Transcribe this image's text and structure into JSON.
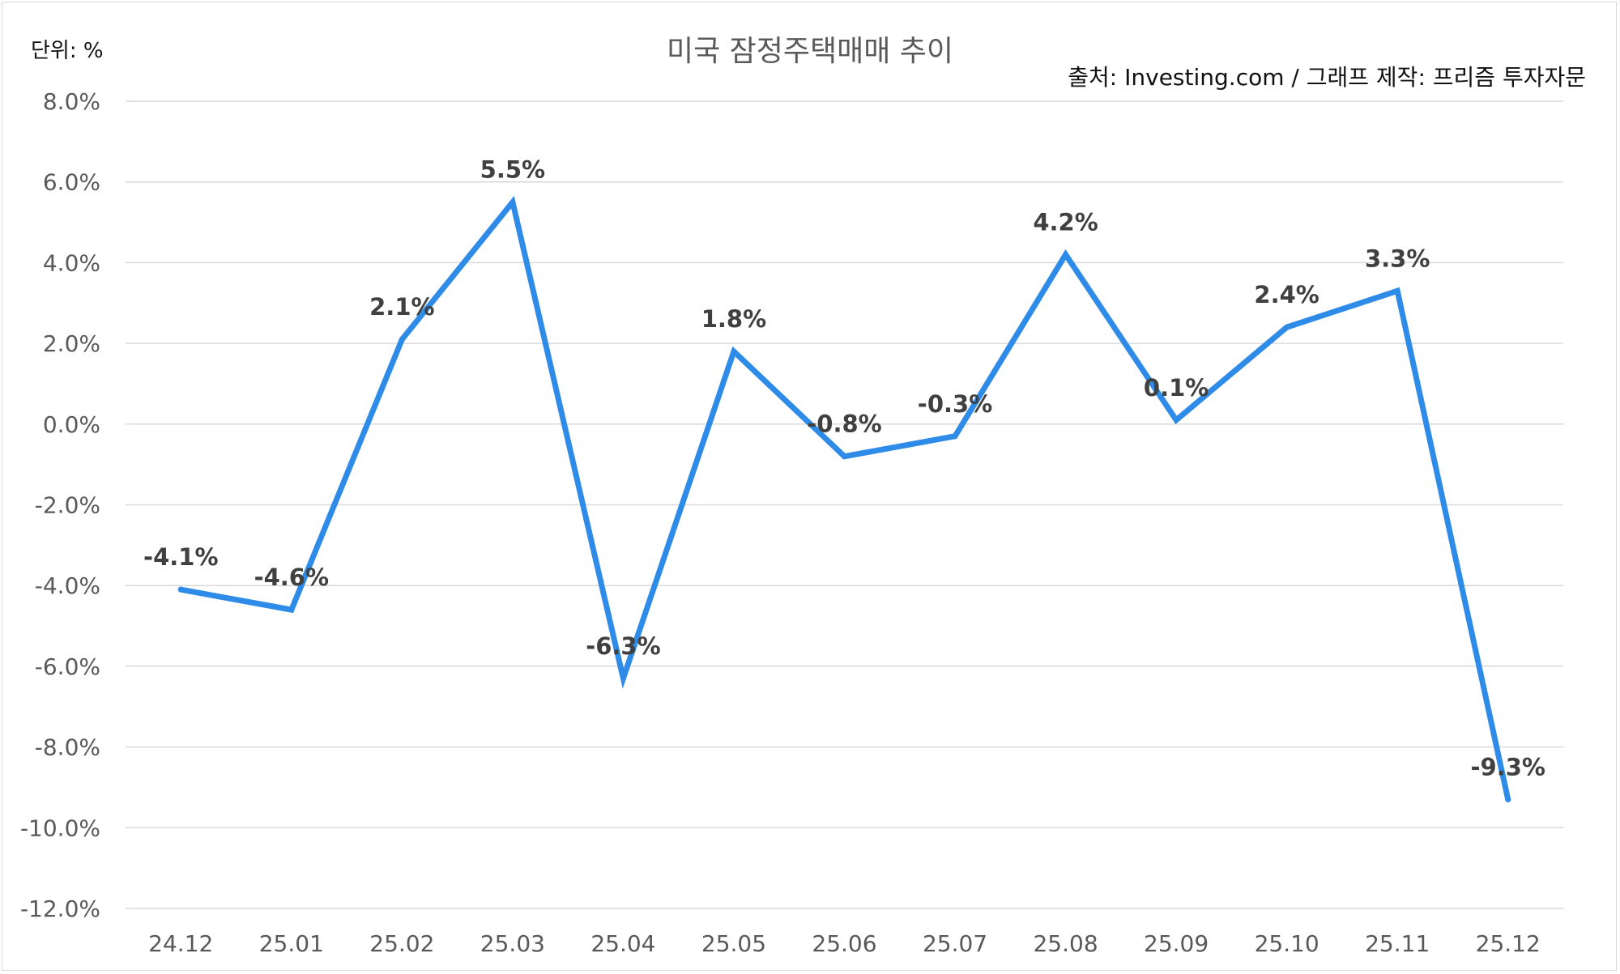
{
  "unit_label": "단위: %",
  "source_label": "출처: Investing.com / 그래프 제작: 프리즘 투자자문",
  "colors": {
    "line": "#2E8BE8",
    "grid": "#d9d9d9",
    "tick_text": "#595959",
    "data_label": "#404040"
  },
  "chart_data": {
    "type": "line",
    "title": "미국 잠정주택매매 추이",
    "xlabel": "",
    "ylabel": "",
    "categories": [
      "24.12",
      "25.01",
      "25.02",
      "25.03",
      "25.04",
      "25.05",
      "25.06",
      "25.07",
      "25.08",
      "25.09",
      "25.10",
      "25.11",
      "25.12"
    ],
    "series": [
      {
        "values": [
          -4.1,
          -4.6,
          2.1,
          5.5,
          -6.3,
          1.8,
          -0.8,
          -0.3,
          4.2,
          0.1,
          2.4,
          3.3,
          -9.3
        ],
        "labels": [
          "-4.1%",
          "-4.6%",
          "2.1%",
          "5.5%",
          "-6.3%",
          "1.8%",
          "-0.8%",
          "-0.3%",
          "4.2%",
          "0.1%",
          "2.4%",
          "3.3%",
          "-9.3%"
        ]
      }
    ],
    "ylim": [
      -12,
      8
    ],
    "yticks": [
      8,
      6,
      4,
      2,
      0,
      -2,
      -4,
      -6,
      -8,
      -10,
      -12
    ],
    "ytick_labels": [
      "8.0%",
      "6.0%",
      "4.0%",
      "2.0%",
      "0.0%",
      "-2.0%",
      "-4.0%",
      "-6.0%",
      "-8.0%",
      "-10.0%",
      "-12.0%"
    ],
    "grid": true,
    "legend": "none"
  }
}
